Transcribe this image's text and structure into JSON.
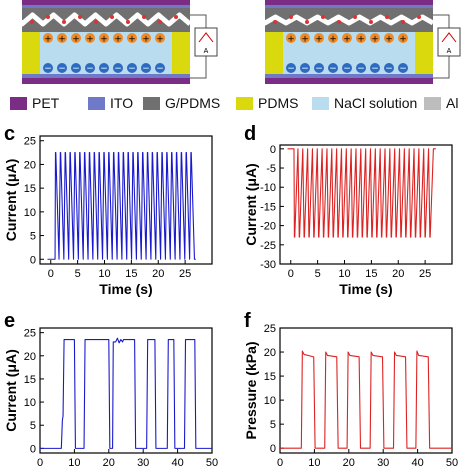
{
  "colors": {
    "pet": "#7b2d86",
    "ito": "#6f79c8",
    "gpdms": "#707070",
    "pdms": "#d9d90d",
    "nacl": "#b9dcef",
    "al": "#bdbdbd",
    "blue_series": "#1a1acc",
    "red_series": "#dd2222"
  },
  "legend": [
    {
      "label": "PET",
      "color_key": "pet"
    },
    {
      "label": "ITO",
      "color_key": "ito"
    },
    {
      "label": "G/PDMS",
      "color_key": "gpdms"
    },
    {
      "label": "PDMS",
      "color_key": "pdms"
    },
    {
      "label": "NaCl solution",
      "color_key": "nacl"
    },
    {
      "label": "Al",
      "color_key": "al"
    }
  ],
  "diagram": {
    "meter_label": "A",
    "ion_positive": "+",
    "ion_negative": "−"
  },
  "panels": {
    "c": "c",
    "d": "d",
    "e": "e",
    "f": "f"
  },
  "chart_data": [
    {
      "id": "c",
      "type": "line",
      "title": "",
      "xlabel": "Time (s)",
      "ylabel": "Current (μA)",
      "xlim": [
        -2,
        30
      ],
      "ylim": [
        -1,
        26
      ],
      "xticks": [
        0,
        5,
        10,
        15,
        20,
        25
      ],
      "yticks": [
        0,
        5,
        10,
        15,
        20,
        25
      ],
      "grid": false,
      "series": [
        {
          "color_key": "blue_series",
          "pulse": {
            "start": 0.8,
            "period": 0.9,
            "count": 29,
            "base": 0,
            "peak": 22.5,
            "end": 27
          }
        }
      ]
    },
    {
      "id": "d",
      "type": "line",
      "title": "",
      "xlabel": "Time (s)",
      "ylabel": "Current (μA)",
      "xlim": [
        -2,
        30
      ],
      "ylim": [
        -30,
        1
      ],
      "xticks": [
        0,
        5,
        10,
        15,
        20,
        25
      ],
      "yticks": [
        0,
        -5,
        -10,
        -15,
        -20,
        -25,
        -30
      ],
      "grid": false,
      "series": [
        {
          "color_key": "red_series",
          "pulse": {
            "start": 0.6,
            "period": 0.9,
            "count": 29,
            "base": 0,
            "peak": -23,
            "end": 27
          }
        }
      ]
    },
    {
      "id": "e",
      "type": "line",
      "title": "",
      "xlabel": "",
      "ylabel": "Current (μA)",
      "xlim": [
        0,
        50
      ],
      "ylim": [
        -1,
        26
      ],
      "xticks": [
        0,
        10,
        20,
        30,
        40,
        50
      ],
      "yticks": [
        0,
        5,
        10,
        15,
        20,
        25
      ],
      "grid": false,
      "series": [
        {
          "color_key": "blue_series",
          "x": [
            0,
            6.2,
            6.5,
            6.7,
            7,
            7.1,
            10,
            10.3,
            12.8,
            13.1,
            16.9,
            17.1,
            20,
            20.3,
            21.1,
            21.3,
            22,
            22.5,
            23,
            23.5,
            24,
            24.3,
            27.5,
            27.8,
            31,
            31.3,
            33.4,
            33.7,
            37,
            37.3,
            38.9,
            39.2,
            42,
            42.3,
            45,
            45.3,
            50
          ],
          "y": [
            0,
            0,
            6,
            7,
            23.5,
            23.5,
            23.5,
            0,
            0,
            23.5,
            23.5,
            23.5,
            23.5,
            0,
            0,
            23,
            23,
            23.8,
            22.8,
            23.5,
            23,
            23.5,
            23.5,
            0,
            0,
            23.5,
            23.5,
            0,
            0,
            23.5,
            23.5,
            0,
            0,
            23.5,
            23.5,
            0,
            0
          ]
        }
      ]
    },
    {
      "id": "f",
      "type": "line",
      "title": "",
      "xlabel": "",
      "ylabel": "Pressure (kPa)",
      "xlim": [
        0,
        50
      ],
      "ylim": [
        -1,
        25
      ],
      "xticks": [
        0,
        10,
        20,
        30,
        40,
        50
      ],
      "yticks": [
        0,
        5,
        10,
        15,
        20,
        25
      ],
      "grid": false,
      "series": [
        {
          "color_key": "red_series",
          "x": [
            0,
            6.2,
            6.5,
            7,
            9.8,
            10.2,
            13,
            13.3,
            13.8,
            16.5,
            16.9,
            19.5,
            19.8,
            20.3,
            23,
            23.4,
            26.2,
            26.5,
            27,
            29.8,
            30.2,
            33,
            33.3,
            33.8,
            36.5,
            36.9,
            39.5,
            39.8,
            40.3,
            43.1,
            43.5,
            50
          ],
          "y": [
            0,
            0,
            20.2,
            19.5,
            19,
            0,
            0,
            20,
            19.3,
            19,
            0,
            0,
            20,
            19.3,
            19,
            0,
            0,
            20,
            19.3,
            19,
            0,
            0,
            20,
            19.3,
            19,
            0,
            0,
            20.2,
            19.3,
            19,
            0,
            0
          ]
        }
      ]
    }
  ]
}
